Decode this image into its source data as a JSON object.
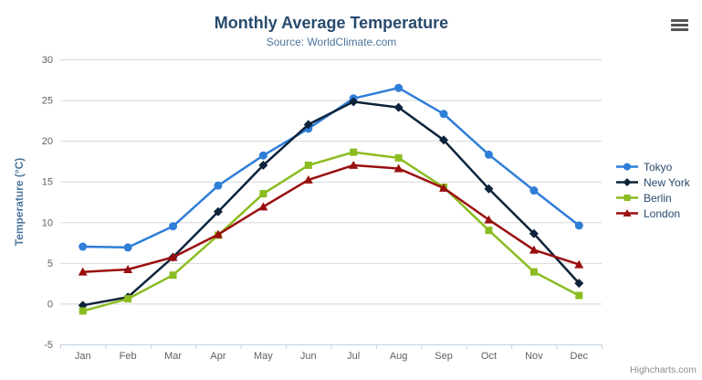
{
  "credits": "Highcharts.com",
  "icons": {
    "context_menu": "hamburger-icon"
  },
  "colors": {
    "title": "#274b6d",
    "subtitle": "#4d759e",
    "axis_title": "#4d759e",
    "axis_labels": "#606060",
    "gridline": "#d8d8d8",
    "axis_line": "#c0d0e0",
    "legend_text": "#274b6d",
    "credits_text": "#8c8c8c"
  },
  "chart_data": {
    "type": "line",
    "title": "Monthly Average Temperature",
    "subtitle": "Source: WorldClimate.com",
    "categories": [
      "Jan",
      "Feb",
      "Mar",
      "Apr",
      "May",
      "Jun",
      "Jul",
      "Aug",
      "Sep",
      "Oct",
      "Nov",
      "Dec"
    ],
    "xlabel": "",
    "ylabel": "Temperature (°C)",
    "ylim": [
      -5,
      30
    ],
    "y_tick_interval": 5,
    "y_tick_labels": [
      "-5",
      "0",
      "5",
      "10",
      "15",
      "20",
      "25",
      "30"
    ],
    "grid": true,
    "legend_position": "right",
    "series": [
      {
        "name": "Tokyo",
        "color": "#2f7ed8",
        "marker": "circle",
        "values": [
          7.0,
          6.9,
          9.5,
          14.5,
          18.2,
          21.5,
          25.2,
          26.5,
          23.3,
          18.3,
          13.9,
          9.6
        ]
      },
      {
        "name": "New York",
        "color": "#0d233a",
        "marker": "diamond",
        "values": [
          -0.2,
          0.8,
          5.7,
          11.3,
          17.0,
          22.0,
          24.8,
          24.1,
          20.1,
          14.1,
          8.6,
          2.5
        ]
      },
      {
        "name": "Berlin",
        "color": "#8bbc21",
        "marker": "square",
        "values": [
          -0.9,
          0.6,
          3.5,
          8.4,
          13.5,
          17.0,
          18.6,
          17.9,
          14.3,
          9.0,
          3.9,
          1.0
        ]
      },
      {
        "name": "London",
        "color": "#9b0f0f",
        "marker": "triangle",
        "values": [
          3.9,
          4.2,
          5.7,
          8.5,
          11.9,
          15.2,
          17.0,
          16.6,
          14.2,
          10.3,
          6.6,
          4.8
        ]
      }
    ]
  }
}
